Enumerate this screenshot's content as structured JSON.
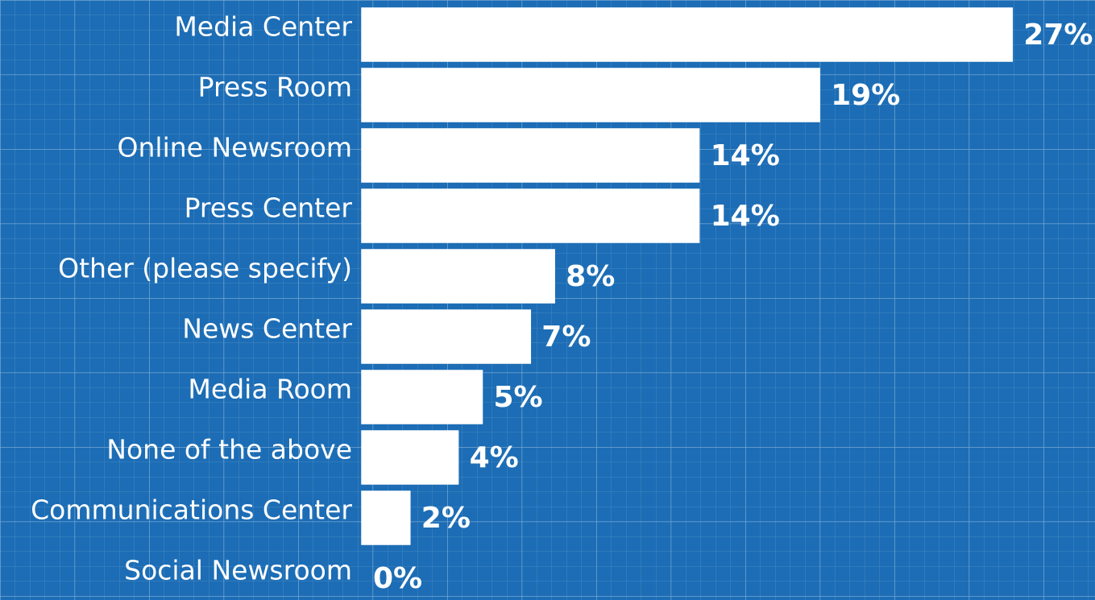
{
  "chart_data": {
    "type": "bar",
    "orientation": "horizontal",
    "categories": [
      "Media Center",
      "Press Room",
      "Online Newsroom",
      "Press Center",
      "Other (please specify)",
      "News Center",
      "Media Room",
      "None of the above",
      "Communications Center",
      "Social Newsroom"
    ],
    "values": [
      27,
      19,
      14,
      14,
      8,
      7,
      5,
      4,
      2,
      0
    ],
    "value_labels": [
      "27%",
      "19%",
      "14%",
      "14%",
      "8%",
      "7%",
      "5%",
      "4%",
      "2%",
      "0%"
    ],
    "color": "#ffffff",
    "grid": false
  }
}
